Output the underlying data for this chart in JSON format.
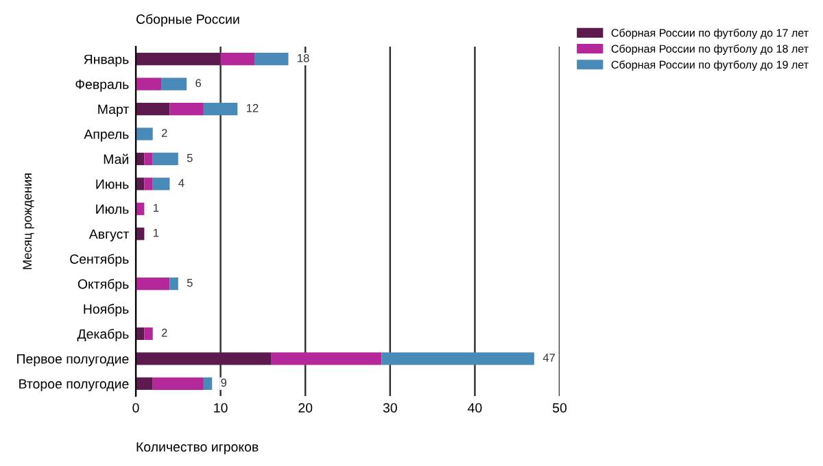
{
  "chart_data": {
    "type": "bar",
    "orientation": "horizontal",
    "stacked": true,
    "title": "Сборные России",
    "xlabel": "Количество игроков",
    "ylabel": "Месяц рождения",
    "categories": [
      "Январь",
      "Февраль",
      "Март",
      "Апрель",
      "Май",
      "Июнь",
      "Июль",
      "Август",
      "Сентябрь",
      "Октябрь",
      "Ноябрь",
      "Декабрь",
      "Первое полугодие",
      "Второе полугодие"
    ],
    "series": [
      {
        "name": "Сборная России по футболу до 17 лет",
        "color": "#5c1a4f",
        "values": [
          10,
          0,
          4,
          0,
          1,
          1,
          0,
          1,
          0,
          0,
          0,
          1,
          16,
          2
        ]
      },
      {
        "name": "Сборная России по футболу до 18 лет",
        "color": "#b5289a",
        "values": [
          4,
          3,
          4,
          0,
          1,
          1,
          1,
          0,
          0,
          4,
          0,
          1,
          13,
          6
        ]
      },
      {
        "name": "Сборная России по футболу до 19 лет",
        "color": "#4a8ab8",
        "values": [
          4,
          3,
          4,
          2,
          3,
          2,
          0,
          0,
          0,
          1,
          0,
          0,
          18,
          1
        ]
      }
    ],
    "totals": [
      "18",
      "6",
      "12",
      "2",
      "5",
      "4",
      "1",
      "1",
      null,
      "5",
      null,
      "2",
      "47",
      "9"
    ],
    "xlim": [
      0,
      50
    ],
    "xticks": [
      0,
      10,
      20,
      30,
      40,
      50
    ],
    "grid": "x",
    "legend": "top right"
  }
}
